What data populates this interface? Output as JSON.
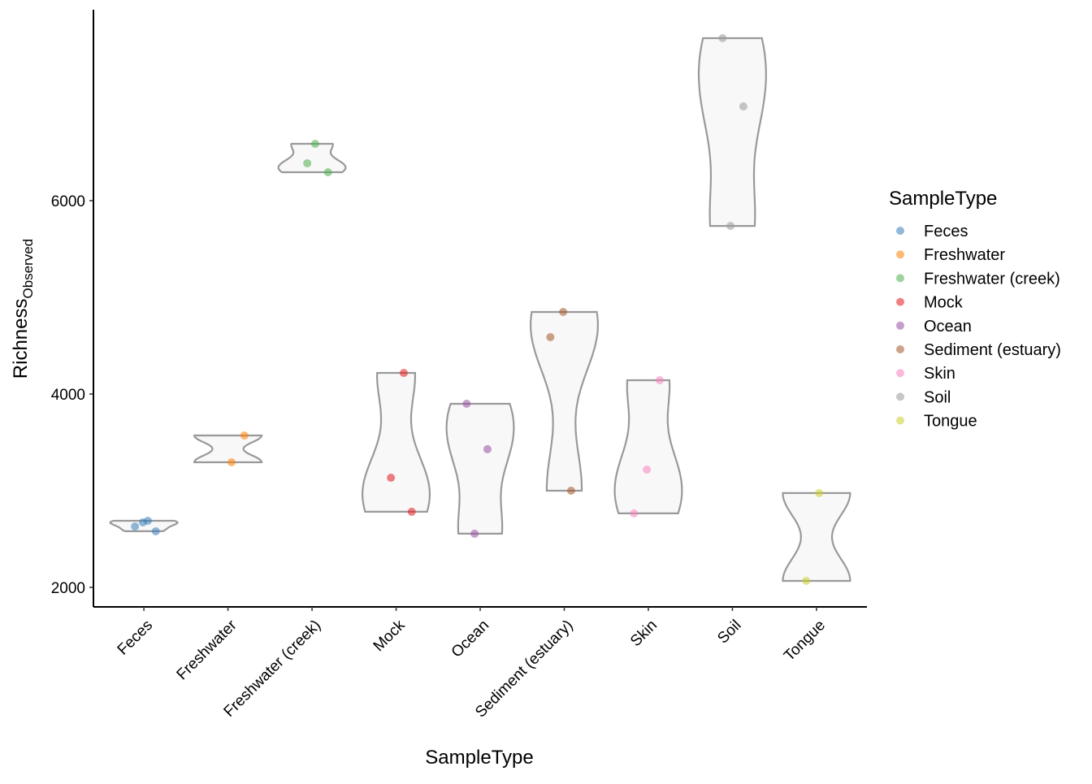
{
  "chart_data": {
    "type": "violin",
    "xlabel": "SampleType",
    "ylabel": {
      "main": "Richness",
      "sub": "Observed"
    },
    "legend_title": "SampleType",
    "legend_position": "right",
    "categories": [
      "Feces",
      "Freshwater",
      "Freshwater (creek)",
      "Mock",
      "Ocean",
      "Sediment (estuary)",
      "Skin",
      "Soil",
      "Tongue"
    ],
    "series": [
      {
        "name": "Feces",
        "color": "#377eb8",
        "values": [
          2689,
          2630,
          2580,
          2672
        ]
      },
      {
        "name": "Freshwater",
        "color": "#ff7f00",
        "values": [
          3571,
          3294
        ]
      },
      {
        "name": "Freshwater (creek)",
        "color": "#4daf4a",
        "values": [
          6387,
          6294,
          6588
        ]
      },
      {
        "name": "Mock",
        "color": "#e41a1c",
        "values": [
          4218,
          3134,
          2782
        ]
      },
      {
        "name": "Ocean",
        "color": "#984ea3",
        "values": [
          3899,
          3429,
          2555
        ]
      },
      {
        "name": "Sediment (estuary)",
        "color": "#a65628",
        "values": [
          4849,
          4588,
          3000
        ]
      },
      {
        "name": "Skin",
        "color": "#f781bf",
        "values": [
          4143,
          3218,
          2765
        ]
      },
      {
        "name": "Soil",
        "color": "#999999",
        "values": [
          7681,
          6975,
          5739
        ]
      },
      {
        "name": "Tongue",
        "color": "#cccc28",
        "values": [
          2975,
          2067
        ]
      }
    ],
    "ylim": [
      1798,
      7975
    ],
    "yticks": [
      2000,
      4000,
      6000
    ]
  }
}
